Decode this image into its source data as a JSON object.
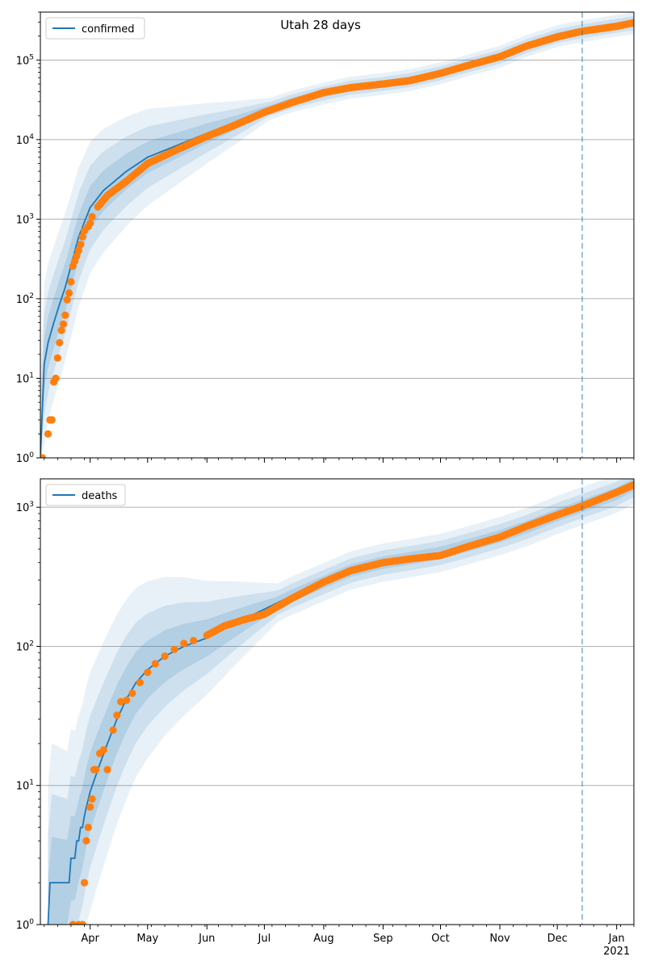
{
  "figure": {
    "title": "Utah 28 days",
    "colors": {
      "model_line": "#1f77b4",
      "observed_points": "#ff7f0e",
      "band": "#1f77b4",
      "gridline": "#b0b0b0",
      "forecast_line": "#1f77b4"
    }
  },
  "chart_data": [
    {
      "type": "line",
      "panel": "confirmed",
      "title": "Utah 28 days",
      "xlabel": "",
      "ylabel": "",
      "yscale": "log",
      "ylim": [
        1,
        400000
      ],
      "xlim": [
        "2020-03-06",
        "2021-01-10"
      ],
      "grid": "y",
      "legend": {
        "placement": "top-left",
        "entries": [
          "confirmed"
        ]
      },
      "y_tick_labels": [
        "10^0",
        "10^1",
        "10^2",
        "10^3",
        "10^4",
        "10^5"
      ],
      "y_tick_values": [
        1,
        10,
        100,
        1000,
        10000,
        100000
      ],
      "forecast_date": "2020-12-14",
      "series": [
        {
          "name": "confirmed",
          "kind": "model",
          "x": [
            "2020-03-06",
            "2020-03-08",
            "2020-03-10",
            "2020-03-13",
            "2020-03-16",
            "2020-03-19",
            "2020-03-22",
            "2020-03-26",
            "2020-04-01",
            "2020-04-08",
            "2020-04-20",
            "2020-05-01",
            "2020-05-15",
            "2020-06-01",
            "2020-06-15",
            "2020-07-01",
            "2020-07-15",
            "2020-08-01",
            "2020-08-15",
            "2020-09-01",
            "2020-09-15",
            "2020-10-01",
            "2020-10-15",
            "2020-11-01",
            "2020-11-15",
            "2020-12-01",
            "2020-12-14",
            "2021-01-01",
            "2021-01-10"
          ],
          "y": [
            1,
            15,
            28,
            50,
            85,
            140,
            260,
            600,
            1400,
            2300,
            4000,
            6000,
            8200,
            12000,
            16000,
            23000,
            30000,
            38000,
            45000,
            50000,
            56000,
            68000,
            85000,
            110000,
            150000,
            200000,
            230000,
            270000,
            290000
          ]
        },
        {
          "name": "confirmed observed",
          "kind": "observed",
          "x": [
            "2020-03-06",
            "2020-03-07",
            "2020-03-10",
            "2020-03-11",
            "2020-03-12",
            "2020-03-13",
            "2020-03-14",
            "2020-03-15",
            "2020-03-16",
            "2020-03-17",
            "2020-03-18",
            "2020-03-19",
            "2020-03-20",
            "2020-03-21",
            "2020-03-22",
            "2020-03-23",
            "2020-03-24",
            "2020-03-25",
            "2020-03-26",
            "2020-03-27",
            "2020-03-28",
            "2020-03-29",
            "2020-03-31",
            "2020-04-01",
            "2020-04-02",
            "2020-04-05",
            "2020-04-10",
            "2020-04-20",
            "2020-05-01",
            "2020-05-15",
            "2020-06-01",
            "2020-06-15",
            "2020-07-01",
            "2020-07-15",
            "2020-08-01",
            "2020-08-15",
            "2020-09-01",
            "2020-09-15",
            "2020-10-01",
            "2020-10-15",
            "2020-11-01",
            "2020-11-15",
            "2020-12-01",
            "2020-12-14",
            "2021-01-01",
            "2021-01-10"
          ],
          "y": [
            1,
            1,
            2,
            3,
            3,
            9,
            10,
            18,
            28,
            40,
            48,
            62,
            97,
            118,
            163,
            257,
            298,
            346,
            402,
            480,
            600,
            719,
            806,
            888,
            1074,
            1428,
            1980,
            3000,
            5000,
            7200,
            11000,
            15000,
            22000,
            29000,
            39000,
            45000,
            50000,
            55000,
            68000,
            85000,
            110000,
            150000,
            195000,
            230000,
            265000,
            295000
          ]
        }
      ]
    },
    {
      "type": "line",
      "panel": "deaths",
      "title": "",
      "xlabel": "",
      "ylabel": "",
      "yscale": "log",
      "ylim": [
        1,
        1600
      ],
      "xlim": [
        "2020-03-06",
        "2021-01-10"
      ],
      "grid": "y",
      "legend": {
        "placement": "top-left",
        "entries": [
          "deaths"
        ]
      },
      "y_tick_labels": [
        "10^0",
        "10^1",
        "10^2",
        "10^3"
      ],
      "y_tick_values": [
        1,
        10,
        100,
        1000
      ],
      "forecast_date": "2020-12-14",
      "x_tick_labels": [
        "Apr",
        "May",
        "Jun",
        "Jul",
        "Aug",
        "Sep",
        "Oct",
        "Nov",
        "Dec",
        "Jan"
      ],
      "x_tick_dates": [
        "2020-04-01",
        "2020-05-01",
        "2020-06-01",
        "2020-07-01",
        "2020-08-01",
        "2020-09-01",
        "2020-10-01",
        "2020-11-01",
        "2020-12-01",
        "2021-01-01"
      ],
      "x_year_label": "2021",
      "series": [
        {
          "name": "deaths",
          "kind": "model",
          "x": [
            "2020-03-10",
            "2020-03-11",
            "2020-03-21",
            "2020-03-22",
            "2020-03-24",
            "2020-03-25",
            "2020-03-26",
            "2020-03-27",
            "2020-03-28",
            "2020-03-29",
            "2020-03-30",
            "2020-04-01",
            "2020-04-05",
            "2020-04-10",
            "2020-04-15",
            "2020-04-20",
            "2020-04-25",
            "2020-05-01",
            "2020-05-10",
            "2020-05-20",
            "2020-06-01",
            "2020-06-15",
            "2020-07-01",
            "2020-07-15",
            "2020-08-01",
            "2020-08-15",
            "2020-09-01",
            "2020-09-15",
            "2020-10-01",
            "2020-10-15",
            "2020-11-01",
            "2020-11-15",
            "2020-12-01",
            "2020-12-14",
            "2021-01-01",
            "2021-01-10"
          ],
          "y": [
            1,
            2,
            2,
            3,
            3,
            4,
            4,
            5,
            5,
            6,
            7,
            9,
            13,
            20,
            30,
            42,
            55,
            68,
            85,
            100,
            115,
            145,
            185,
            230,
            290,
            350,
            400,
            430,
            470,
            530,
            620,
            720,
            880,
            1020,
            1250,
            1450
          ]
        },
        {
          "name": "deaths observed",
          "kind": "observed",
          "x": [
            "2020-03-23",
            "2020-03-26",
            "2020-03-28",
            "2020-03-29",
            "2020-03-30",
            "2020-03-31",
            "2020-04-01",
            "2020-04-02",
            "2020-04-03",
            "2020-04-04",
            "2020-04-06",
            "2020-04-08",
            "2020-04-10",
            "2020-04-13",
            "2020-04-15",
            "2020-04-17",
            "2020-04-20",
            "2020-04-23",
            "2020-04-27",
            "2020-05-01",
            "2020-05-05",
            "2020-05-10",
            "2020-05-15",
            "2020-05-20",
            "2020-05-25",
            "2020-06-01",
            "2020-06-10",
            "2020-06-20",
            "2020-07-01",
            "2020-07-15",
            "2020-08-01",
            "2020-08-15",
            "2020-09-01",
            "2020-09-15",
            "2020-10-01",
            "2020-10-15",
            "2020-11-01",
            "2020-11-15",
            "2020-12-01",
            "2020-12-14",
            "2021-01-01",
            "2021-01-10"
          ],
          "y": [
            1,
            1,
            1,
            2,
            4,
            5,
            7,
            8,
            13,
            13,
            17,
            18,
            13,
            25,
            32,
            40,
            41,
            46,
            55,
            65,
            75,
            85,
            95,
            105,
            110,
            120,
            140,
            155,
            170,
            220,
            290,
            350,
            400,
            425,
            450,
            520,
            610,
            730,
            880,
            1020,
            1280,
            1450
          ]
        }
      ]
    }
  ]
}
